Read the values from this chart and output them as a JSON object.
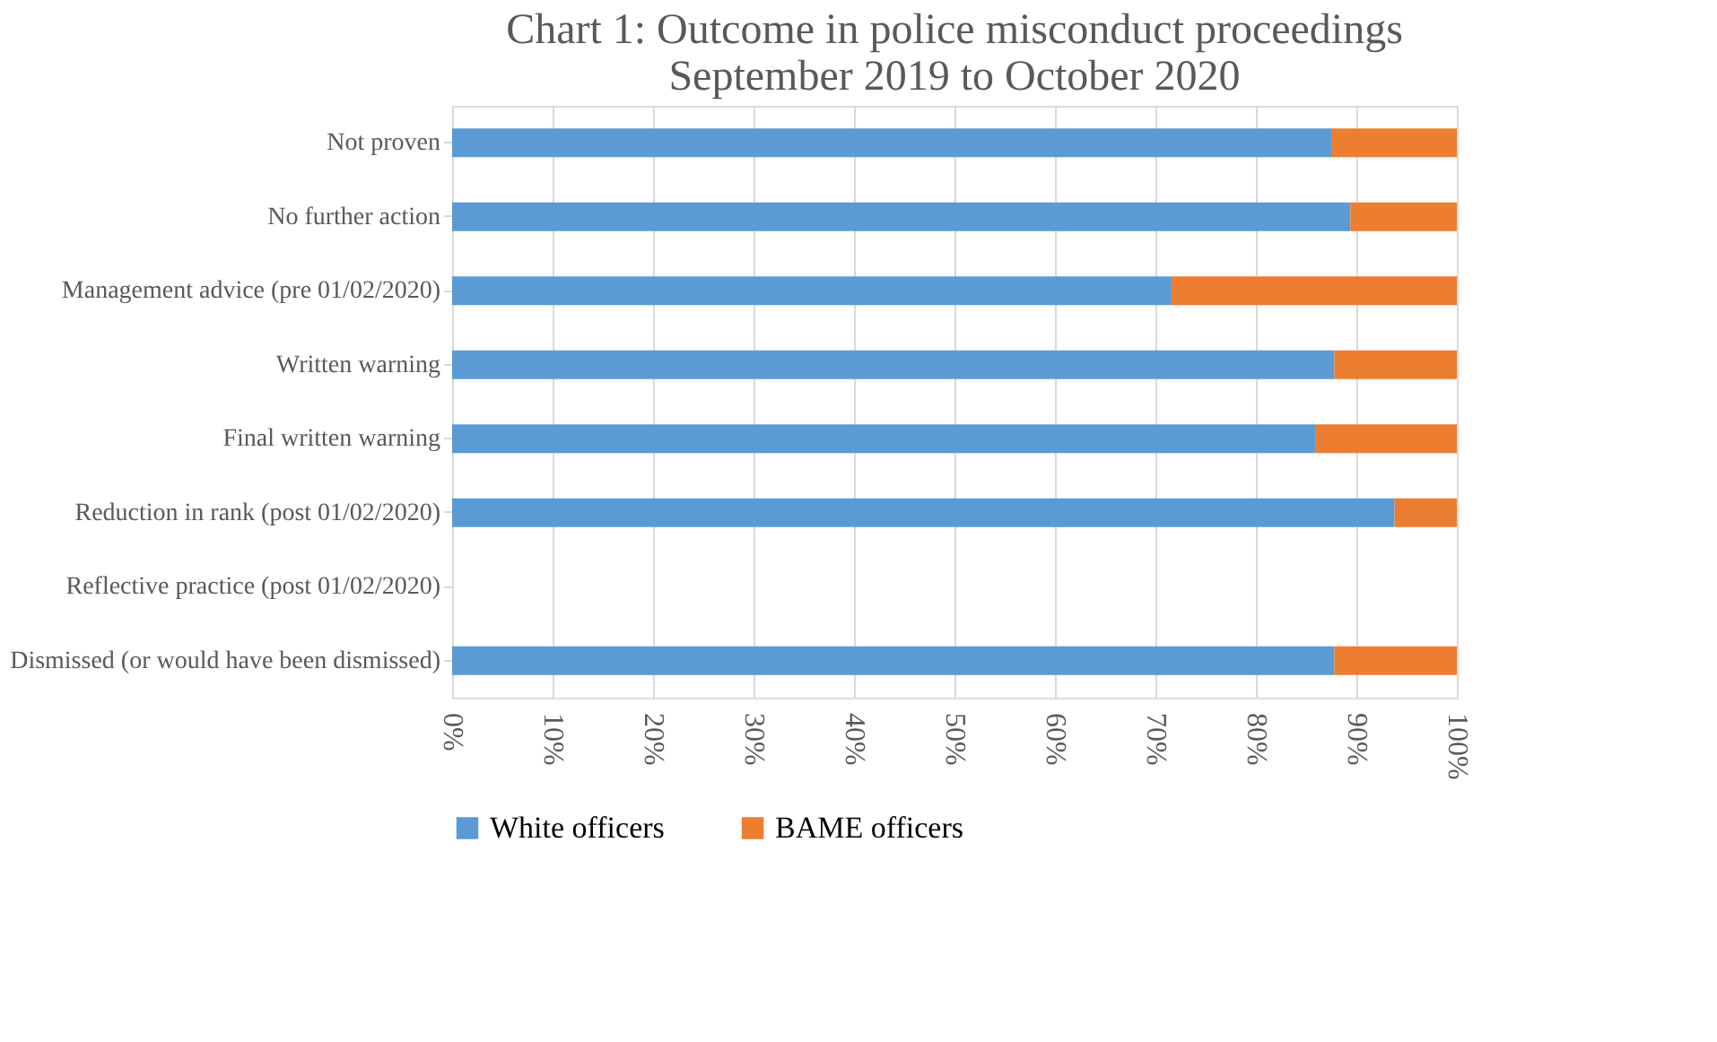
{
  "chart_data": {
    "type": "bar",
    "orientation": "horizontal",
    "stacked": true,
    "title": [
      "Chart 1: Outcome in police misconduct proceedings",
      "September 2019 to October 2020"
    ],
    "categories": [
      "Not proven",
      "No further action",
      "Management advice (pre 01/02/2020)",
      "Written warning",
      "Final written warning",
      "Reduction in rank (post 01/02/2020)",
      "Reflective practice (post 01/02/2020)",
      "Dismissed (or would have been dismissed)"
    ],
    "series": [
      {
        "name": "White officers",
        "color": "#5b9bd5",
        "values": [
          87.5,
          89.4,
          71.6,
          87.8,
          85.9,
          93.8,
          null,
          87.8
        ]
      },
      {
        "name": "BAME officers",
        "color": "#ed7d31",
        "values": [
          12.5,
          10.6,
          28.4,
          12.2,
          14.1,
          6.2,
          null,
          12.2
        ]
      }
    ],
    "xlim": [
      0,
      100
    ],
    "xticks": [
      {
        "value": 0,
        "label": "0%"
      },
      {
        "value": 10,
        "label": "10%"
      },
      {
        "value": 20,
        "label": "20%"
      },
      {
        "value": 30,
        "label": "30%"
      },
      {
        "value": 40,
        "label": "40%"
      },
      {
        "value": 50,
        "label": "50%"
      },
      {
        "value": 60,
        "label": "60%"
      },
      {
        "value": 70,
        "label": "70%"
      },
      {
        "value": 80,
        "label": "80%"
      },
      {
        "value": 90,
        "label": "90%"
      },
      {
        "value": 100,
        "label": "100%"
      }
    ],
    "grid": "x",
    "legend": "bottom"
  }
}
